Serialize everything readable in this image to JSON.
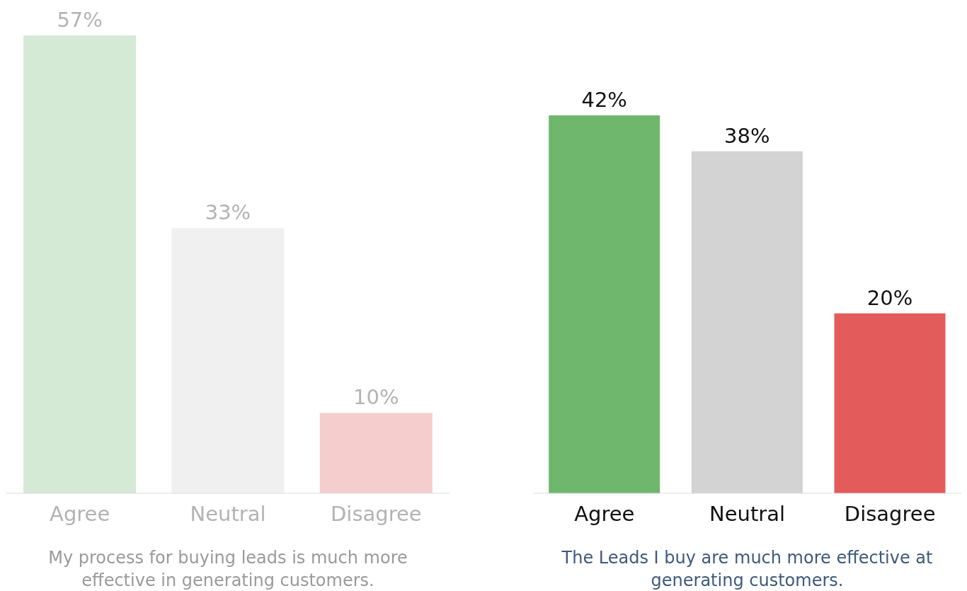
{
  "chart_data": [
    {
      "type": "bar",
      "title": "My process for buying leads is much more effective in generating customers.",
      "categories": [
        "Agree",
        "Neutral",
        "Disagree"
      ],
      "values": [
        57,
        33,
        10
      ],
      "value_labels": [
        "57%",
        "33%",
        "10%"
      ],
      "colors": [
        "#d4ead4",
        "#f0f0f0",
        "#f6cdcd"
      ]
    },
    {
      "type": "bar",
      "title": "The Leads I buy are much more effective at generating customers.",
      "categories": [
        "Agree",
        "Neutral",
        "Disagree"
      ],
      "values": [
        42,
        38,
        20
      ],
      "value_labels": [
        "42%",
        "38%",
        "20%"
      ],
      "colors": [
        "#6fb76c",
        "#d3d3d3",
        "#e35b5a"
      ]
    }
  ]
}
